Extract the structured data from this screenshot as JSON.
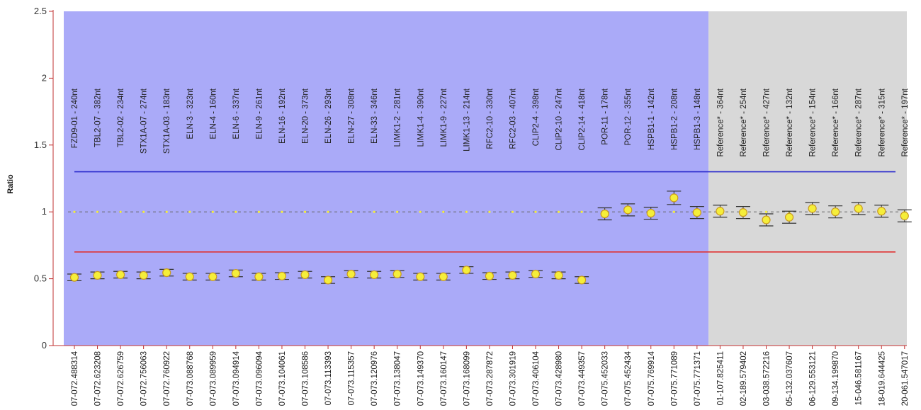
{
  "chart_data": {
    "type": "scatter",
    "ylabel": "Ratio",
    "ylim": [
      0,
      2.5
    ],
    "yticks": [
      "0",
      "0.5",
      "1",
      "1.5",
      "2",
      "2.5"
    ],
    "upper_threshold": 1.3,
    "lower_threshold": 0.7,
    "baseline": 1.0,
    "colors": {
      "sample_region": "#aaaaf8",
      "reference_region": "#d8d8d8",
      "upper_line": "#2a2acc",
      "lower_line": "#e03030",
      "axis": "#c23030",
      "marker_fill": "#f5ee3a",
      "marker_edge": "#c99a20"
    },
    "probes": [
      {
        "label": "FZD9-01 - 240nt",
        "position": "07-072.488314",
        "ratio": 0.51,
        "error": 0.025,
        "region": "sample"
      },
      {
        "label": "TBL2-07 - 382nt",
        "position": "07-072.623208",
        "ratio": 0.525,
        "error": 0.025,
        "region": "sample"
      },
      {
        "label": "TBL2-02 - 234nt",
        "position": "07-072.626759",
        "ratio": 0.53,
        "error": 0.025,
        "region": "sample"
      },
      {
        "label": "STX1A-07 - 274nt",
        "position": "07-072.756063",
        "ratio": 0.525,
        "error": 0.025,
        "region": "sample"
      },
      {
        "label": "STX1A-03 - 183nt",
        "position": "07-072.760922",
        "ratio": 0.545,
        "error": 0.025,
        "region": "sample"
      },
      {
        "label": "ELN-3 - 323nt",
        "position": "07-073.088768",
        "ratio": 0.515,
        "error": 0.025,
        "region": "sample"
      },
      {
        "label": "ELN-4 - 160nt",
        "position": "07-073.089959",
        "ratio": 0.515,
        "error": 0.025,
        "region": "sample"
      },
      {
        "label": "ELN-6 - 337nt",
        "position": "07-073.094914",
        "ratio": 0.54,
        "error": 0.025,
        "region": "sample"
      },
      {
        "label": "ELN-9 - 261nt",
        "position": "07-073.096094",
        "ratio": 0.515,
        "error": 0.025,
        "region": "sample"
      },
      {
        "label": "ELN-16 - 192nt",
        "position": "07-073.104061",
        "ratio": 0.52,
        "error": 0.025,
        "region": "sample"
      },
      {
        "label": "ELN-20 - 373nt",
        "position": "07-073.108586",
        "ratio": 0.53,
        "error": 0.025,
        "region": "sample"
      },
      {
        "label": "ELN-26 - 293nt",
        "position": "07-073.113393",
        "ratio": 0.49,
        "error": 0.025,
        "region": "sample"
      },
      {
        "label": "ELN-27 - 308nt",
        "position": "07-073.115357",
        "ratio": 0.535,
        "error": 0.025,
        "region": "sample"
      },
      {
        "label": "ELN-33 - 346nt",
        "position": "07-073.120976",
        "ratio": 0.53,
        "error": 0.025,
        "region": "sample"
      },
      {
        "label": "LIMK1-2 - 281nt",
        "position": "07-073.138047",
        "ratio": 0.535,
        "error": 0.025,
        "region": "sample"
      },
      {
        "label": "LIMK1-4 - 390nt",
        "position": "07-073.149370",
        "ratio": 0.515,
        "error": 0.025,
        "region": "sample"
      },
      {
        "label": "LIMK1-9 - 227nt",
        "position": "07-073.160147",
        "ratio": 0.515,
        "error": 0.025,
        "region": "sample"
      },
      {
        "label": "LIMK1-13 - 214nt",
        "position": "07-073.168099",
        "ratio": 0.565,
        "error": 0.025,
        "region": "sample"
      },
      {
        "label": "RFC2-10 - 330nt",
        "position": "07-073.287872",
        "ratio": 0.52,
        "error": 0.025,
        "region": "sample"
      },
      {
        "label": "RFC2-03 - 407nt",
        "position": "07-073.301919",
        "ratio": 0.525,
        "error": 0.025,
        "region": "sample"
      },
      {
        "label": "CLIP2-4 - 398nt",
        "position": "07-073.406104",
        "ratio": 0.535,
        "error": 0.025,
        "region": "sample"
      },
      {
        "label": "CLIP2-10 - 247nt",
        "position": "07-073.428980",
        "ratio": 0.525,
        "error": 0.025,
        "region": "sample"
      },
      {
        "label": "CLIP2-14 - 418nt",
        "position": "07-073.449357",
        "ratio": 0.49,
        "error": 0.025,
        "region": "sample"
      },
      {
        "label": "POR-11 - 178nt",
        "position": "07-075.452033",
        "ratio": 0.985,
        "error": 0.045,
        "region": "sample"
      },
      {
        "label": "POR-12 - 355nt",
        "position": "07-075.452434",
        "ratio": 1.015,
        "error": 0.045,
        "region": "sample"
      },
      {
        "label": "HSPB1-1 - 142nt",
        "position": "07-075.769914",
        "ratio": 0.99,
        "error": 0.045,
        "region": "sample"
      },
      {
        "label": "HSPB1-2 - 208nt",
        "position": "07-075.771089",
        "ratio": 1.105,
        "error": 0.05,
        "region": "sample"
      },
      {
        "label": "HSPB1-3 - 148nt",
        "position": "07-075.771371",
        "ratio": 0.995,
        "error": 0.045,
        "region": "sample"
      },
      {
        "label": "Reference* - 364nt",
        "position": "01-107.825411",
        "ratio": 1.005,
        "error": 0.045,
        "region": "reference"
      },
      {
        "label": "Reference* - 254nt",
        "position": "02-189.579402",
        "ratio": 0.995,
        "error": 0.045,
        "region": "reference"
      },
      {
        "label": "Reference* - 427nt",
        "position": "03-038.572216",
        "ratio": 0.94,
        "error": 0.045,
        "region": "reference"
      },
      {
        "label": "Reference* - 132nt",
        "position": "05-132.037607",
        "ratio": 0.96,
        "error": 0.045,
        "region": "reference"
      },
      {
        "label": "Reference* - 154nt",
        "position": "06-129.553121",
        "ratio": 1.025,
        "error": 0.045,
        "region": "reference"
      },
      {
        "label": "Reference* - 166nt",
        "position": "09-134.199870",
        "ratio": 1.0,
        "error": 0.045,
        "region": "reference"
      },
      {
        "label": "Reference* - 287nt",
        "position": "15-046.581167",
        "ratio": 1.025,
        "error": 0.045,
        "region": "reference"
      },
      {
        "label": "Reference* - 315nt",
        "position": "18-019.644425",
        "ratio": 1.005,
        "error": 0.045,
        "region": "reference"
      },
      {
        "label": "Reference* - 197nt",
        "position": "20-061.547017",
        "ratio": 0.97,
        "error": 0.045,
        "region": "reference"
      }
    ]
  }
}
